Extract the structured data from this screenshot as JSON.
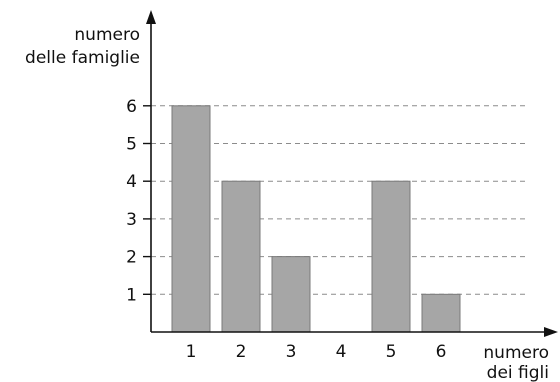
{
  "chart_data": {
    "type": "bar",
    "title": "",
    "ylabel_lines": [
      "numero",
      "delle famiglie"
    ],
    "xlabel_lines": [
      "numero",
      "dei figli"
    ],
    "categories": [
      "1",
      "2",
      "3",
      "4",
      "5",
      "6"
    ],
    "values": [
      6,
      4,
      2,
      0,
      4,
      1
    ],
    "yticks": [
      "1",
      "2",
      "3",
      "4",
      "5",
      "6"
    ],
    "ylim": [
      0,
      6
    ],
    "grid": "horizontal dashed",
    "legend": "none",
    "colors": {
      "bar": "#a6a6a6",
      "bar_edge": "#7a7a7a",
      "axis": "#111111",
      "grid": "#8c8c8c"
    }
  }
}
